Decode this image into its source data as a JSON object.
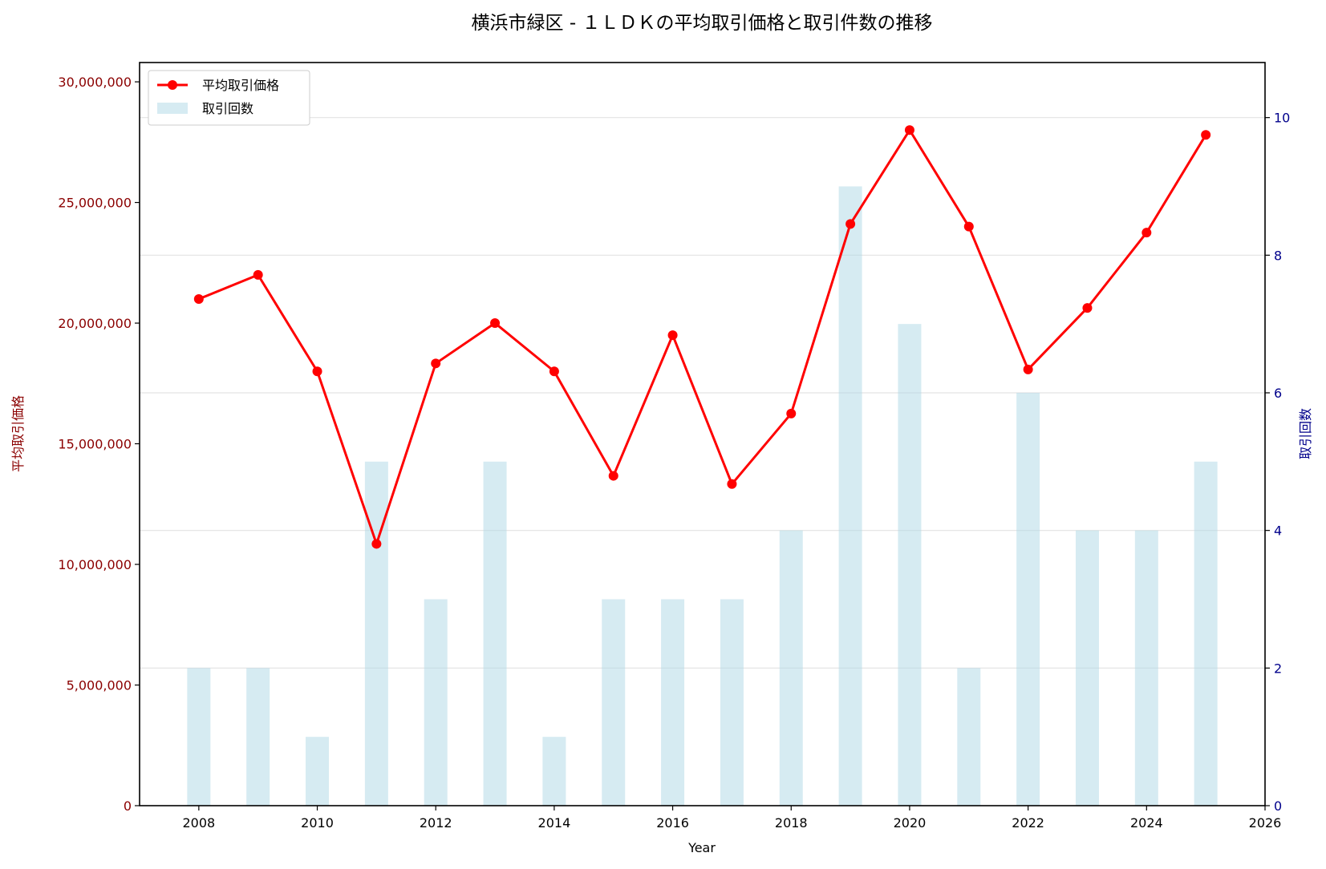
{
  "chart_data": {
    "type": "bar+line",
    "title": "横浜市緑区 - １ＬＤＫの平均取引価格と取引件数の推移",
    "xlabel": "Year",
    "ylabel_left": "平均取引価格",
    "ylabel_right": "取引回数",
    "xlim": [
      2007,
      2026
    ],
    "ylim_left": [
      0,
      30800000
    ],
    "ylim_right": [
      0,
      10.8
    ],
    "x_ticks": [
      2008,
      2010,
      2012,
      2014,
      2016,
      2018,
      2020,
      2022,
      2024,
      2026
    ],
    "y_left_ticks": [
      0,
      5000000,
      10000000,
      15000000,
      20000000,
      25000000,
      30000000
    ],
    "y_right_ticks": [
      0,
      2,
      4,
      6,
      8,
      10
    ],
    "grid": "horizontal (right axis)",
    "legend_position": "top-left",
    "x": [
      2008,
      2009,
      2010,
      2011,
      2012,
      2013,
      2014,
      2015,
      2016,
      2017,
      2018,
      2019,
      2020,
      2021,
      2022,
      2023,
      2024,
      2025
    ],
    "series": [
      {
        "name": "平均取引価格",
        "kind": "line",
        "axis": "left",
        "color": "#ff0000",
        "values": [
          21000000,
          22000000,
          18000000,
          10850000,
          18330000,
          20000000,
          18000000,
          13670000,
          19500000,
          13330000,
          16250000,
          24110000,
          28000000,
          24000000,
          18080000,
          20630000,
          23750000,
          27800000
        ]
      },
      {
        "name": "取引回数",
        "kind": "bar",
        "axis": "right",
        "color": "#add8e6",
        "values": [
          2,
          2,
          1,
          5,
          3,
          5,
          1,
          3,
          3,
          3,
          4,
          9,
          7,
          2,
          6,
          4,
          4,
          5
        ]
      }
    ]
  },
  "colors": {
    "left_axis": "#8b0000",
    "right_axis": "#00008b",
    "line": "#ff0000",
    "bar": "#add8e6"
  }
}
